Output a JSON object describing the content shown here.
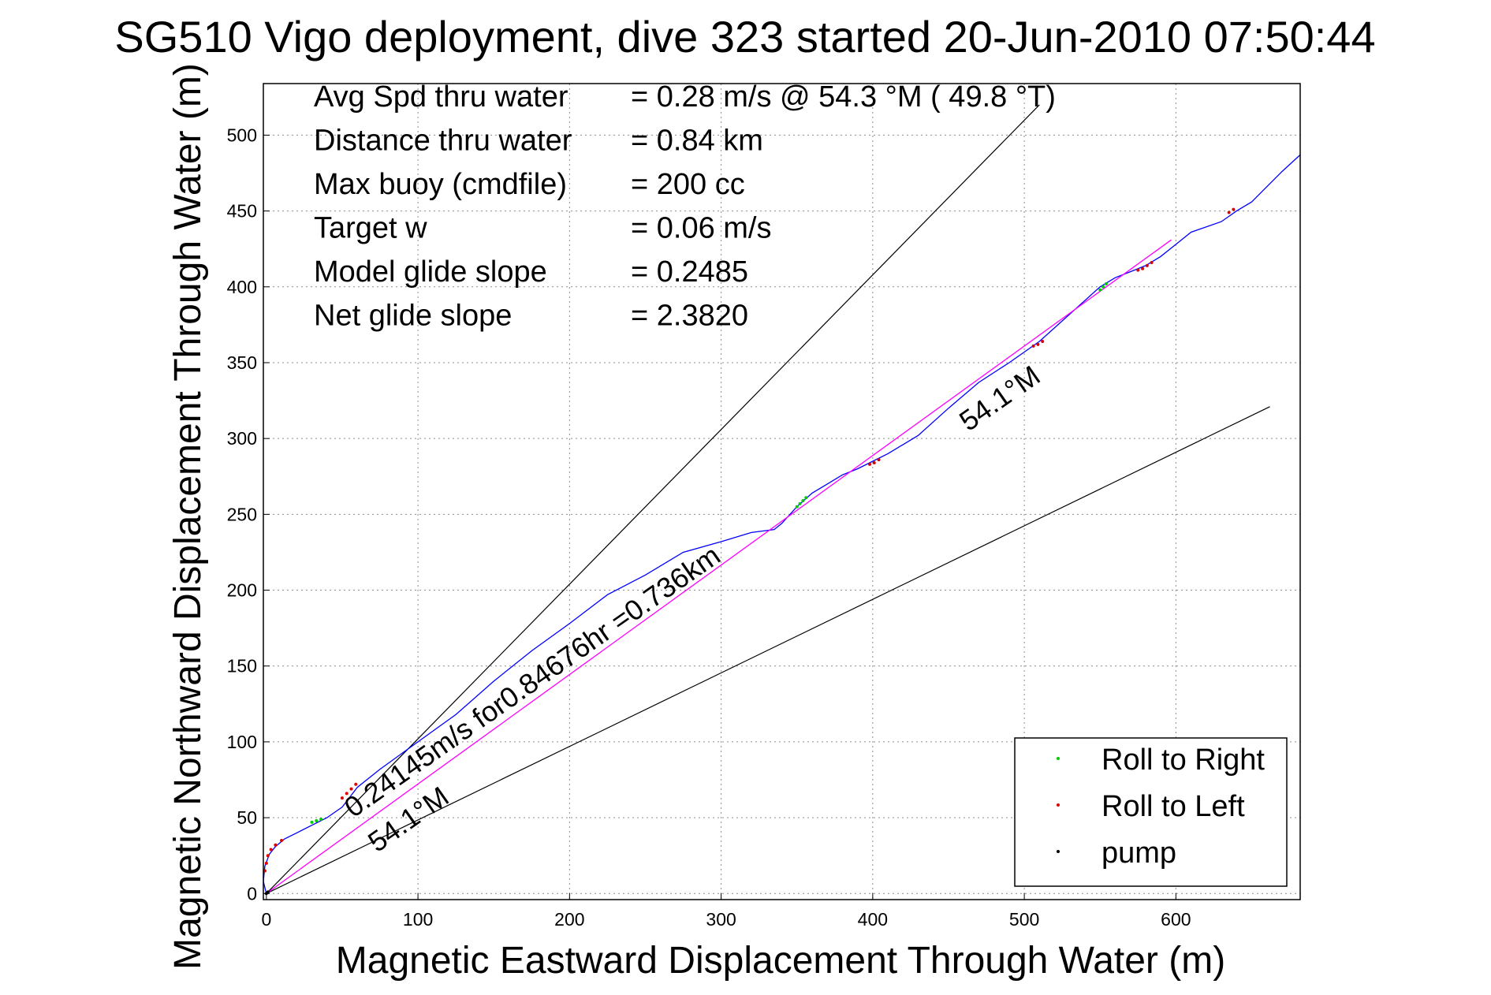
{
  "chart_data": {
    "type": "line",
    "title": "SG510 Vigo deployment, dive 323 started 20-Jun-2010 07:50:44",
    "xlabel": "Magnetic Eastward Displacement Through Water (m)",
    "ylabel": "Magnetic Northward Displacement Through Water (m)",
    "xlim": [
      -2,
      682
    ],
    "ylim": [
      -4,
      534
    ],
    "xticks": [
      0,
      100,
      200,
      300,
      400,
      500,
      600
    ],
    "yticks": [
      0,
      50,
      100,
      150,
      200,
      250,
      300,
      350,
      400,
      450,
      500
    ],
    "grid": true,
    "stats": [
      {
        "label": "Avg Spd thru water",
        "value": "=  0.28 m/s @  54.3 °M ( 49.8 °T)"
      },
      {
        "label": "Distance thru water",
        "value": "=  0.84 km"
      },
      {
        "label": "Max buoy (cmdfile)",
        "value": "= 200 cc"
      },
      {
        "label": "Target w",
        "value": "= 0.06 m/s"
      },
      {
        "label": "Model glide slope",
        "value": "= 0.2485"
      },
      {
        "label": "Net glide slope",
        "value": "= 2.3820"
      }
    ],
    "annotations": {
      "track_label": "0.24145m/s for0.84676hr =0.736km",
      "heading_upper": "54.1°M",
      "heading_lower": "54.1°M"
    },
    "legend": {
      "position": "bottom-right",
      "entries": [
        {
          "label": "Roll to Right",
          "color": "#00cc00"
        },
        {
          "label": "Roll to Left",
          "color": "#dd0000"
        },
        {
          "label": "pump",
          "color": "#000000"
        }
      ]
    },
    "series": [
      {
        "role": "track",
        "color": "#0000ff",
        "x": [
          0,
          -2,
          -1,
          2,
          6,
          12,
          20,
          30,
          40,
          50,
          60,
          75,
          100,
          125,
          150,
          175,
          200,
          225,
          250,
          275,
          300,
          320,
          335,
          340,
          350,
          360,
          370,
          380,
          390,
          400,
          410,
          420,
          430,
          450,
          470,
          490,
          510,
          530,
          550,
          560,
          570,
          580,
          590,
          600,
          610,
          630,
          640,
          650,
          660,
          670,
          682
        ],
        "y": [
          0,
          8,
          18,
          26,
          31,
          36,
          40,
          45,
          50,
          57,
          70,
          82,
          100,
          118,
          140,
          160,
          178,
          197,
          210,
          225,
          232,
          238,
          240,
          244,
          255,
          264,
          270,
          276,
          280,
          285,
          290,
          296,
          302,
          320,
          337,
          350,
          364,
          382,
          400,
          406,
          410,
          414,
          420,
          428,
          436,
          443,
          450,
          456,
          466,
          476,
          487
        ]
      },
      {
        "role": "fit",
        "color": "#ff00ff",
        "x": [
          0,
          597
        ],
        "y": [
          0,
          431
        ]
      },
      {
        "role": "reference-upper",
        "color": "#000000",
        "x": [
          0,
          510
        ],
        "y": [
          0,
          520
        ]
      },
      {
        "role": "reference-lower",
        "color": "#000000",
        "x": [
          0,
          662
        ],
        "y": [
          0,
          321
        ]
      }
    ],
    "markers": [
      {
        "kind": "right",
        "x": [
          30,
          33,
          36,
          350,
          352,
          354,
          356,
          550,
          552,
          554
        ],
        "y": [
          47,
          48,
          49,
          255,
          257,
          259,
          261,
          398,
          400,
          402
        ]
      },
      {
        "kind": "left",
        "x": [
          -1,
          0,
          1,
          3,
          6,
          10,
          50,
          53,
          56,
          59,
          398,
          401,
          404,
          506,
          509,
          512,
          575,
          578,
          581,
          584,
          635,
          638
        ],
        "y": [
          15,
          20,
          25,
          29,
          32,
          35,
          63,
          66,
          69,
          72,
          283,
          284,
          286,
          361,
          362,
          364,
          411,
          412,
          414,
          416,
          449,
          451
        ]
      },
      {
        "kind": "pump",
        "x": [
          0,
          1
        ],
        "y": [
          0,
          1
        ]
      }
    ]
  }
}
